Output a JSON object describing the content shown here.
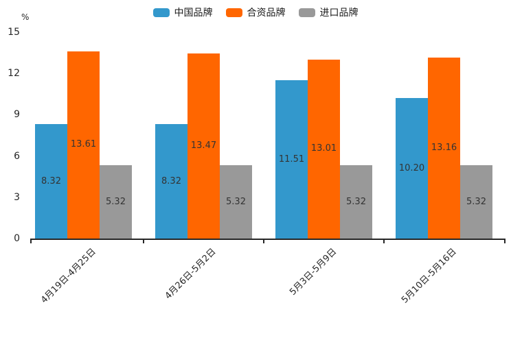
{
  "chart_data": {
    "type": "bar",
    "title": "",
    "xlabel": "",
    "ylabel": "%",
    "ylim": [
      0,
      15
    ],
    "yticks": [
      0,
      3,
      6,
      9,
      12,
      15
    ],
    "grid": false,
    "legend_position": "top",
    "value_labels": "center",
    "categories": [
      "4月19日-4月25日",
      "4月26日-5月2日",
      "5月3日-5月9日",
      "5月10日-5月16日"
    ],
    "series": [
      {
        "name": "中国品牌",
        "color": "#3398CC",
        "values": [
          8.32,
          8.32,
          11.51,
          10.2
        ]
      },
      {
        "name": "合资品牌",
        "color": "#FF6600",
        "values": [
          13.61,
          13.47,
          13.01,
          13.16
        ]
      },
      {
        "name": "进口品牌",
        "color": "#999999",
        "values": [
          5.32,
          5.32,
          5.32,
          5.32
        ]
      }
    ]
  },
  "colors": {
    "axis": "#262626",
    "value_label_text": "#333333",
    "background": "#ffffff"
  }
}
